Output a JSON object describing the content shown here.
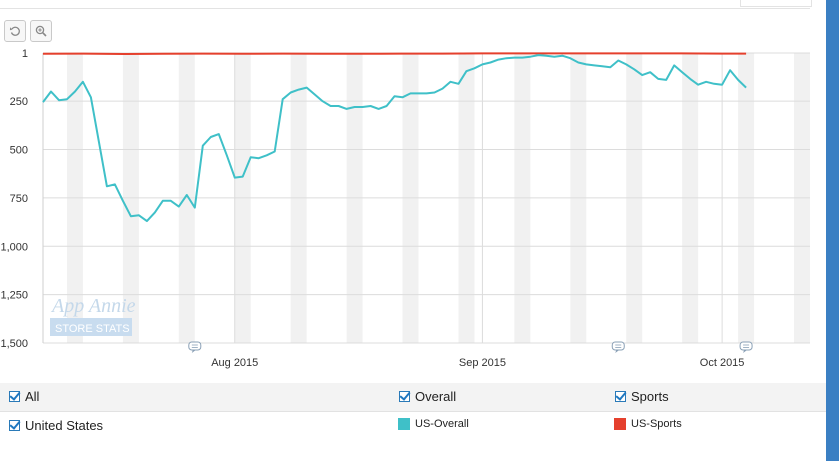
{
  "toolbar": {
    "reset_icon": "undo-icon",
    "zoom_icon": "zoom-in-icon"
  },
  "watermark": {
    "brand": "App Annie",
    "sub": "STORE STATS"
  },
  "legend": {
    "rows": [
      [
        {
          "label": "All"
        },
        {
          "label": "Overall"
        },
        {
          "label": "Sports"
        }
      ],
      [
        {
          "label": "United States"
        }
      ]
    ],
    "series": [
      {
        "label": "US-Overall",
        "color": "#3fc0c8"
      },
      {
        "label": "US-Sports",
        "color": "#e5402d"
      }
    ]
  },
  "chart_data": {
    "type": "line",
    "x_start": "2015-07-08",
    "x_end": "2015-10-12",
    "y_reversed": true,
    "ylim": [
      1,
      1500
    ],
    "y_ticks": [
      1,
      250,
      500,
      750,
      1000,
      1250,
      1500
    ],
    "y_tick_labels": [
      "1",
      "250",
      "500",
      "750",
      "1,000",
      "1,250",
      "1,500"
    ],
    "x_ticks": [
      {
        "date": "2015-08-01",
        "label": "Aug 2015"
      },
      {
        "date": "2015-09-01",
        "label": "Sep 2015"
      },
      {
        "date": "2015-10-01",
        "label": "Oct 2015"
      }
    ],
    "weekend_bands": [
      "2015-07-11",
      "2015-07-18",
      "2015-07-25",
      "2015-08-01",
      "2015-08-08",
      "2015-08-15",
      "2015-08-22",
      "2015-08-29",
      "2015-09-05",
      "2015-09-12",
      "2015-09-19",
      "2015-09-26",
      "2015-10-03",
      "2015-10-10"
    ],
    "annotations": [
      "2015-07-27",
      "2015-09-18",
      "2015-10-04"
    ],
    "grid": true,
    "series": [
      {
        "name": "US-Overall",
        "color": "#3fc0c8",
        "values": [
          [
            "2015-07-08",
            255
          ],
          [
            "2015-07-09",
            200
          ],
          [
            "2015-07-10",
            245
          ],
          [
            "2015-07-11",
            240
          ],
          [
            "2015-07-12",
            200
          ],
          [
            "2015-07-13",
            150
          ],
          [
            "2015-07-14",
            230
          ],
          [
            "2015-07-15",
            460
          ],
          [
            "2015-07-16",
            690
          ],
          [
            "2015-07-17",
            680
          ],
          [
            "2015-07-18",
            765
          ],
          [
            "2015-07-19",
            845
          ],
          [
            "2015-07-20",
            840
          ],
          [
            "2015-07-21",
            870
          ],
          [
            "2015-07-22",
            825
          ],
          [
            "2015-07-23",
            765
          ],
          [
            "2015-07-24",
            765
          ],
          [
            "2015-07-25",
            795
          ],
          [
            "2015-07-26",
            735
          ],
          [
            "2015-07-27",
            800
          ],
          [
            "2015-07-28",
            480
          ],
          [
            "2015-07-29",
            435
          ],
          [
            "2015-07-30",
            420
          ],
          [
            "2015-07-31",
            530
          ],
          [
            "2015-08-01",
            645
          ],
          [
            "2015-08-02",
            640
          ],
          [
            "2015-08-03",
            540
          ],
          [
            "2015-08-04",
            545
          ],
          [
            "2015-08-05",
            530
          ],
          [
            "2015-08-06",
            510
          ],
          [
            "2015-08-07",
            240
          ],
          [
            "2015-08-08",
            205
          ],
          [
            "2015-08-09",
            190
          ],
          [
            "2015-08-10",
            180
          ],
          [
            "2015-08-11",
            215
          ],
          [
            "2015-08-12",
            250
          ],
          [
            "2015-08-13",
            275
          ],
          [
            "2015-08-14",
            275
          ],
          [
            "2015-08-15",
            290
          ],
          [
            "2015-08-16",
            280
          ],
          [
            "2015-08-17",
            280
          ],
          [
            "2015-08-18",
            275
          ],
          [
            "2015-08-19",
            290
          ],
          [
            "2015-08-20",
            275
          ],
          [
            "2015-08-21",
            225
          ],
          [
            "2015-08-22",
            230
          ],
          [
            "2015-08-23",
            210
          ],
          [
            "2015-08-24",
            210
          ],
          [
            "2015-08-25",
            210
          ],
          [
            "2015-08-26",
            205
          ],
          [
            "2015-08-27",
            185
          ],
          [
            "2015-08-28",
            150
          ],
          [
            "2015-08-29",
            160
          ],
          [
            "2015-08-30",
            95
          ],
          [
            "2015-08-31",
            80
          ],
          [
            "2015-09-01",
            60
          ],
          [
            "2015-09-02",
            50
          ],
          [
            "2015-09-03",
            35
          ],
          [
            "2015-09-04",
            28
          ],
          [
            "2015-09-05",
            25
          ],
          [
            "2015-09-06",
            25
          ],
          [
            "2015-09-07",
            20
          ],
          [
            "2015-09-08",
            12
          ],
          [
            "2015-09-09",
            15
          ],
          [
            "2015-09-10",
            20
          ],
          [
            "2015-09-11",
            15
          ],
          [
            "2015-09-12",
            28
          ],
          [
            "2015-09-13",
            50
          ],
          [
            "2015-09-14",
            60
          ],
          [
            "2015-09-15",
            65
          ],
          [
            "2015-09-16",
            70
          ],
          [
            "2015-09-17",
            75
          ],
          [
            "2015-09-18",
            40
          ],
          [
            "2015-09-19",
            60
          ],
          [
            "2015-09-20",
            85
          ],
          [
            "2015-09-21",
            115
          ],
          [
            "2015-09-22",
            100
          ],
          [
            "2015-09-23",
            135
          ],
          [
            "2015-09-24",
            140
          ],
          [
            "2015-09-25",
            65
          ],
          [
            "2015-09-26",
            100
          ],
          [
            "2015-09-27",
            135
          ],
          [
            "2015-09-28",
            165
          ],
          [
            "2015-09-29",
            150
          ],
          [
            "2015-09-30",
            160
          ],
          [
            "2015-10-01",
            165
          ],
          [
            "2015-10-02",
            90
          ],
          [
            "2015-10-03",
            140
          ],
          [
            "2015-10-04",
            180
          ]
        ]
      },
      {
        "name": "US-Sports",
        "color": "#e5402d",
        "values": [
          [
            "2015-07-08",
            5
          ],
          [
            "2015-07-13",
            4
          ],
          [
            "2015-07-18",
            6
          ],
          [
            "2015-07-23",
            5
          ],
          [
            "2015-07-28",
            4
          ],
          [
            "2015-08-02",
            5
          ],
          [
            "2015-08-07",
            4
          ],
          [
            "2015-08-12",
            5
          ],
          [
            "2015-08-17",
            5
          ],
          [
            "2015-08-22",
            4
          ],
          [
            "2015-08-27",
            4
          ],
          [
            "2015-09-01",
            3
          ],
          [
            "2015-09-06",
            3
          ],
          [
            "2015-09-11",
            3
          ],
          [
            "2015-09-16",
            3
          ],
          [
            "2015-09-21",
            3
          ],
          [
            "2015-09-26",
            3
          ],
          [
            "2015-10-01",
            4
          ],
          [
            "2015-10-04",
            4
          ]
        ]
      }
    ]
  }
}
